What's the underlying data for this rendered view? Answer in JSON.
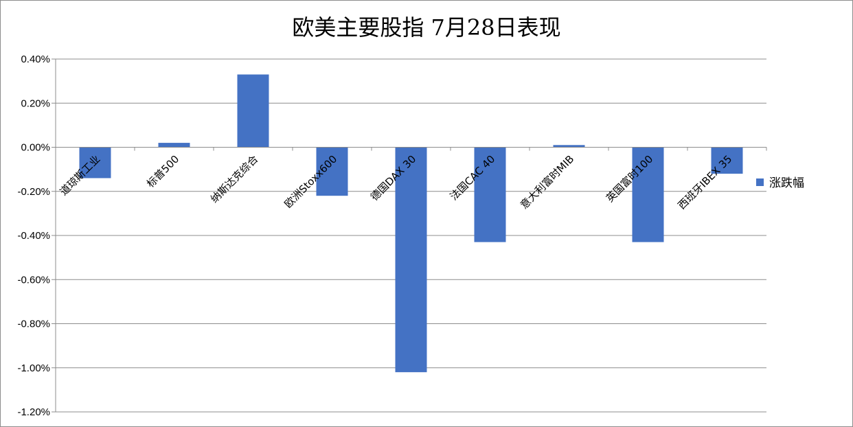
{
  "chart_data": {
    "type": "bar",
    "title": "欧美主要股指  7月28日表现",
    "categories": [
      "道琼斯工业",
      "标普500",
      "纳斯达克综合",
      "欧洲Stoxx600",
      "德国DAX 30",
      "法国CAC 40",
      "意大利富时MIB",
      "英国富时100",
      "西班牙IBEX 35"
    ],
    "series": [
      {
        "name": "涨跌幅",
        "values": [
          -0.14,
          0.02,
          0.33,
          -0.22,
          -1.02,
          -0.43,
          0.01,
          -0.43,
          -0.12
        ],
        "color": "#4472c4"
      }
    ],
    "yticks": [
      "0.40%",
      "0.20%",
      "0.00%",
      "-0.20%",
      "-0.40%",
      "-0.60%",
      "-0.80%",
      "-1.00%",
      "-1.20%"
    ],
    "ylim": [
      -1.2,
      0.4
    ],
    "grid": true,
    "legend_position": "right"
  }
}
